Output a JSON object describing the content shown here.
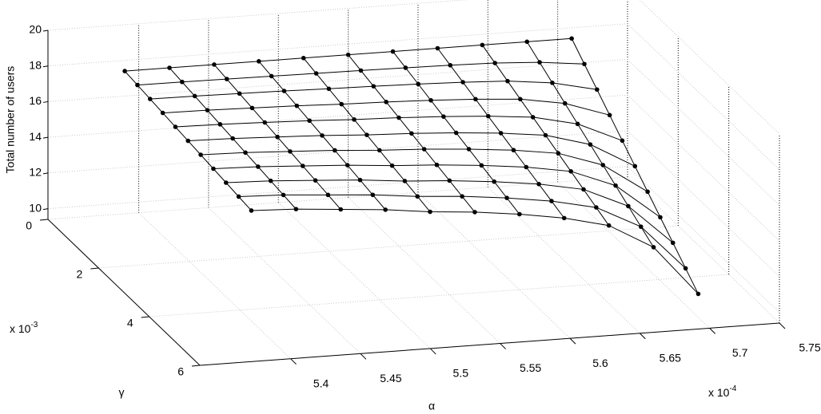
{
  "chart_data": {
    "type": "mesh3d",
    "zlabel": "Total number of users",
    "xlabel": "α",
    "ylabel": "γ",
    "x_scale": {
      "text": "x 10",
      "exponent": "-4"
    },
    "y_scale": {
      "text": "x 10",
      "exponent": "-3"
    },
    "color": "#000000",
    "grid": true,
    "x": [
      5.39,
      5.422,
      5.454,
      5.486,
      5.518,
      5.55,
      5.582,
      5.614,
      5.646,
      5.678,
      5.71
    ],
    "y": [
      0,
      0.5,
      1,
      1.5,
      2,
      2.5,
      3,
      3.5,
      4,
      4.5,
      5
    ],
    "z": [
      [
        17.4,
        17.4,
        17.4,
        17.4,
        17.4,
        17.4,
        17.4,
        17.4,
        17.4,
        17.4,
        17.4
      ],
      [
        17.3,
        17.29,
        17.27,
        17.25,
        17.22,
        17.2,
        17.17,
        17.13,
        17.07,
        16.93,
        16.65
      ],
      [
        17.2,
        17.18,
        17.14,
        17.1,
        17.04,
        17.0,
        16.94,
        16.86,
        16.74,
        16.46,
        15.9
      ],
      [
        17.1,
        17.07,
        17.01,
        16.95,
        16.86,
        16.8,
        16.71,
        16.59,
        16.41,
        15.99,
        15.15
      ],
      [
        17.0,
        16.96,
        16.88,
        16.8,
        16.68,
        16.6,
        16.48,
        16.32,
        16.08,
        15.52,
        14.4
      ],
      [
        16.9,
        16.85,
        16.75,
        16.65,
        16.5,
        16.4,
        16.25,
        16.05,
        15.75,
        15.05,
        13.65
      ],
      [
        16.8,
        16.74,
        16.62,
        16.5,
        16.32,
        16.2,
        16.02,
        15.78,
        15.42,
        14.58,
        12.9
      ],
      [
        16.7,
        16.63,
        16.49,
        16.35,
        16.14,
        16.0,
        15.79,
        15.51,
        15.09,
        14.11,
        12.15
      ],
      [
        16.6,
        16.52,
        16.36,
        16.2,
        15.96,
        15.8,
        15.56,
        15.24,
        14.76,
        13.64,
        11.4
      ],
      [
        16.5,
        16.41,
        16.23,
        16.05,
        15.78,
        15.6,
        15.33,
        14.97,
        14.43,
        13.17,
        10.65
      ],
      [
        16.4,
        16.3,
        16.1,
        15.9,
        15.6,
        15.4,
        15.1,
        14.7,
        14.1,
        12.7,
        9.9
      ]
    ],
    "xlim": [
      5.335,
      5.75
    ],
    "ylim": [
      0,
      6
    ],
    "zlim": [
      9.4,
      20
    ],
    "xticks": [
      5.4,
      5.45,
      5.5,
      5.55,
      5.6,
      5.65,
      5.7,
      5.75
    ],
    "yticks": [
      0,
      2,
      4,
      6
    ],
    "zticks": [
      10,
      12,
      14,
      16,
      18,
      20
    ]
  }
}
